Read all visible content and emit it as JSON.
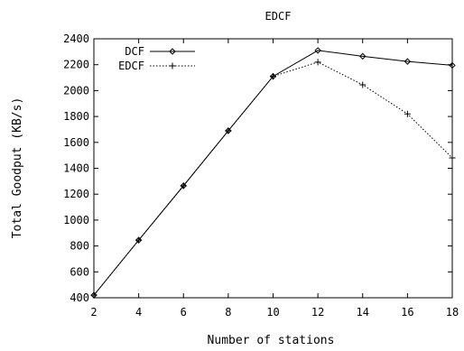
{
  "chart_data": {
    "type": "line",
    "title": "EDCF",
    "xlabel": "Number of stations",
    "ylabel": "Total Goodput (KB/s)",
    "xlim": [
      2,
      18
    ],
    "ylim": [
      400,
      2400
    ],
    "x_ticks": [
      2,
      4,
      6,
      8,
      10,
      12,
      14,
      16,
      18
    ],
    "y_ticks": [
      400,
      600,
      800,
      1000,
      1200,
      1400,
      1600,
      1800,
      2000,
      2200,
      2400
    ],
    "grid": false,
    "legend_position": "top-left",
    "series": [
      {
        "name": "DCF",
        "marker": "diamond",
        "line_style": "solid",
        "x": [
          2,
          4,
          6,
          8,
          10,
          12,
          14,
          16,
          18
        ],
        "y": [
          420,
          845,
          1265,
          1690,
          2110,
          2310,
          2265,
          2225,
          2195
        ]
      },
      {
        "name": "EDCF",
        "marker": "plus",
        "line_style": "dotted",
        "x": [
          2,
          4,
          6,
          8,
          10,
          12,
          14,
          16,
          18
        ],
        "y": [
          420,
          845,
          1265,
          1690,
          2110,
          2220,
          2045,
          1820,
          1480
        ]
      }
    ]
  }
}
